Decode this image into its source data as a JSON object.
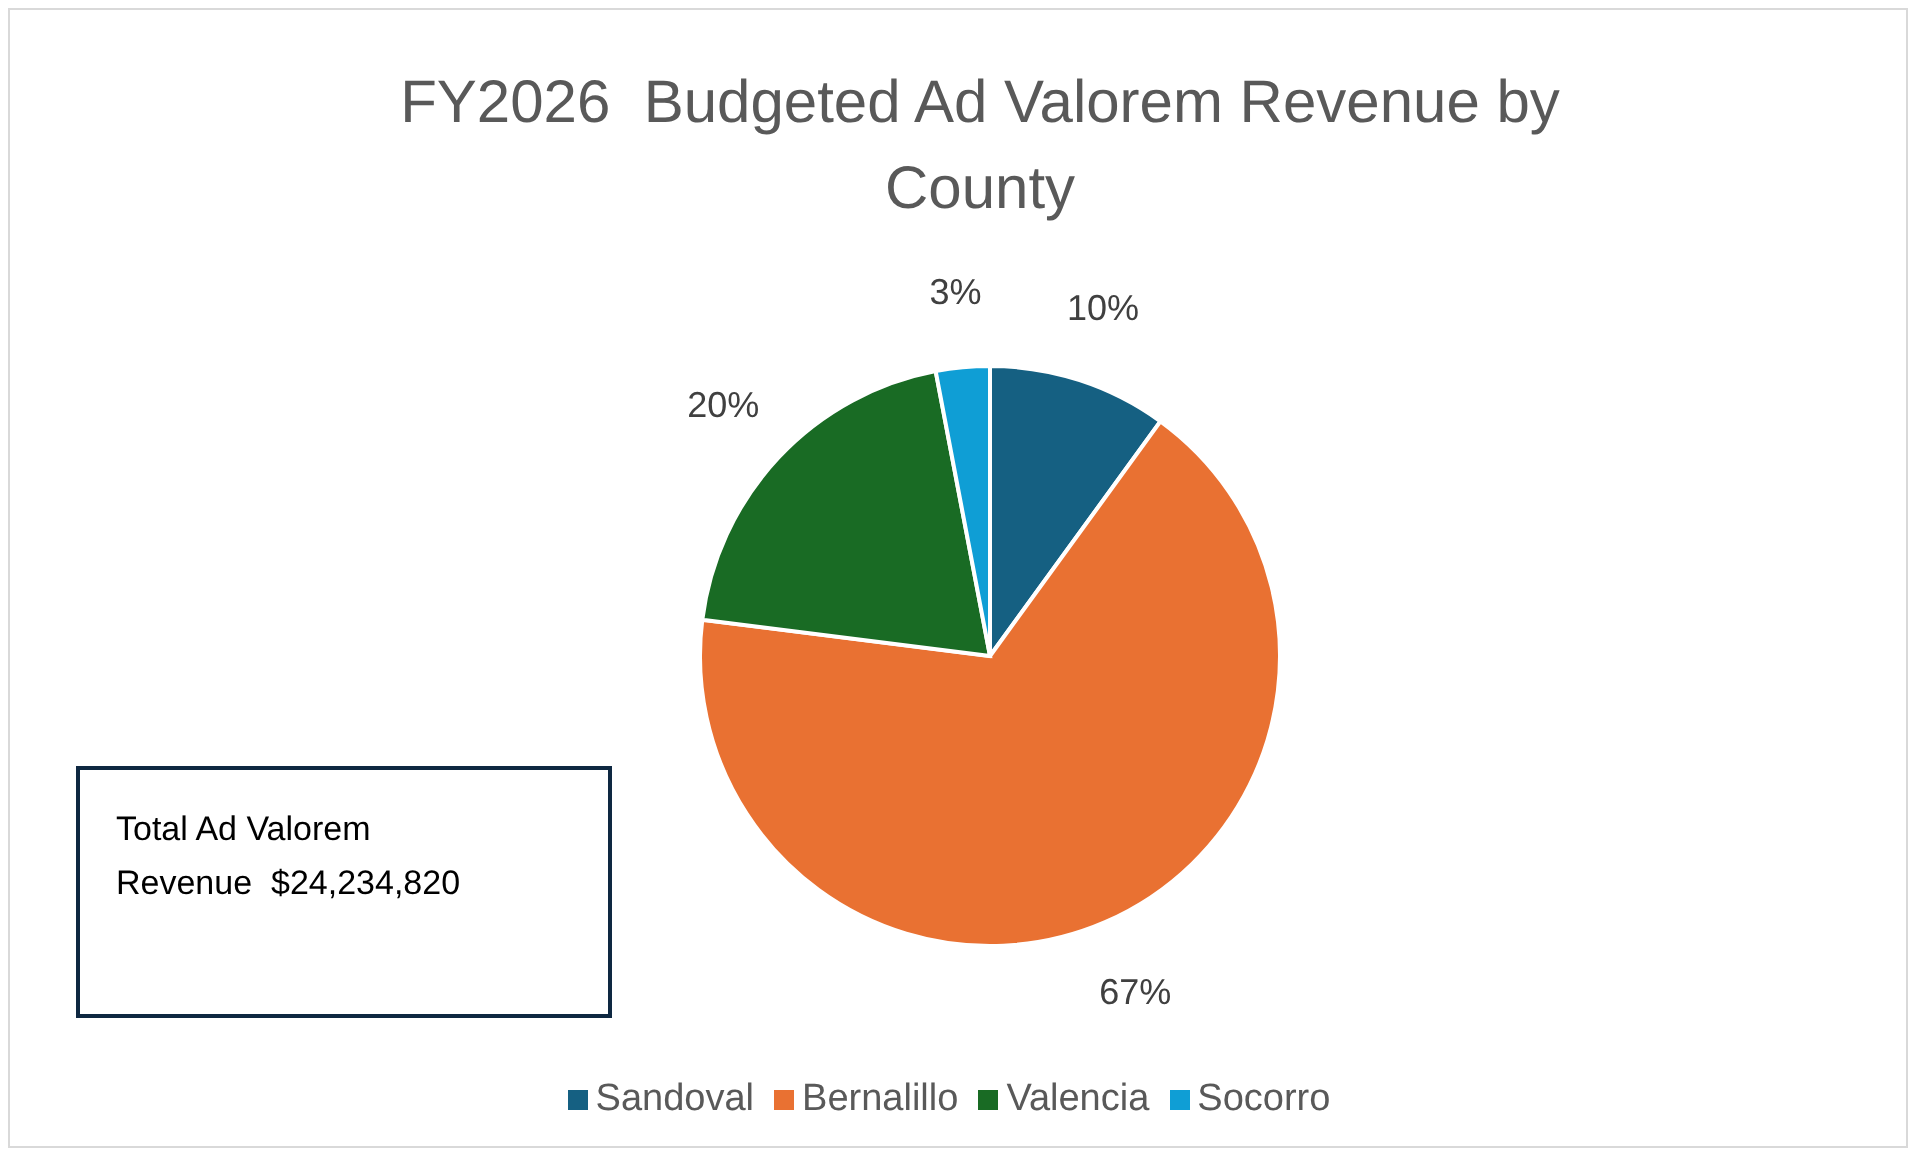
{
  "chart_data": {
    "type": "pie",
    "title": "FY2026  Budgeted Ad Valorem Revenue by County",
    "categories": [
      "Sandoval",
      "Bernalillo",
      "Valencia",
      "Socorro"
    ],
    "values": [
      10,
      67,
      20,
      3
    ],
    "value_labels": [
      "10%",
      "67%",
      "20%",
      "3%"
    ],
    "colors": [
      "#156082",
      "#e97132",
      "#196b24",
      "#0f9ed5"
    ],
    "legend": "bottom",
    "annotations": [
      "Total Ad Valorem Revenue  $24,234,820"
    ]
  }
}
